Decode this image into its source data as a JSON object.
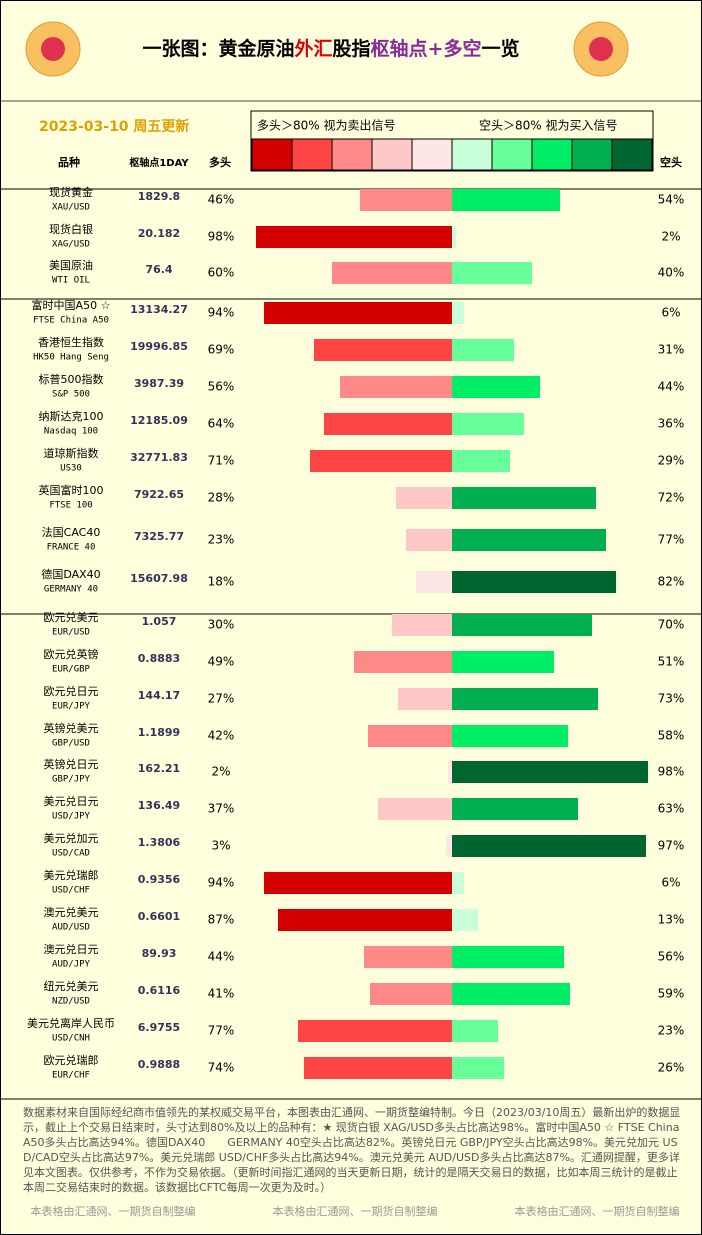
{
  "header": {
    "title": [
      {
        "text": "一张图：黄金原油",
        "color": "#000000"
      },
      {
        "text": "外汇",
        "color": "#e00000"
      },
      {
        "text": "股指",
        "color": "#000000"
      },
      {
        "text": "枢轴点+多空",
        "color": "#8a2a9a"
      },
      {
        "text": "一览",
        "color": "#000000"
      }
    ],
    "date": "2023-03-10 周五更新"
  },
  "legend": {
    "long_note": "多头＞80% 视为卖出信号",
    "short_note": "空头＞80% 视为买入信号",
    "colors": [
      "#d40000",
      "#ff4444",
      "#ff8888",
      "#ffc8c8",
      "#ffe6e6",
      "#c8ffd8",
      "#66ff99",
      "#00ee66",
      "#00b050",
      "#006630"
    ]
  },
  "columns": {
    "name": "品种",
    "pivot": "枢轴点1DAY",
    "long": "多头",
    "short": "空头"
  },
  "table": {
    "groups": [
      [
        {
          "name": "现货黄金",
          "code": "XAU/USD",
          "pivot": 1829.8,
          "long": 46,
          "long_label": "46%",
          "short": 54,
          "short_label": "54%"
        },
        {
          "name": "现货白银",
          "code": "XAG/USD",
          "pivot": 20.182,
          "long": 98,
          "long_label": "98%",
          "short": 2,
          "short_label": "2%"
        },
        {
          "name": "美国原油",
          "code": "WTI OIL",
          "pivot": 76.4,
          "long": 60,
          "long_label": "60%",
          "short": 40,
          "short_label": "40%"
        }
      ],
      [
        {
          "name": "富时中国A50 ☆",
          "code": "FTSE China A50",
          "pivot": 13134.27,
          "long": 94,
          "long_label": "94%",
          "short": 6,
          "short_label": "6%"
        },
        {
          "name": "香港恒生指数",
          "code": "HK50 Hang Seng",
          "pivot": 19996.85,
          "long": 69,
          "long_label": "69%",
          "short": 31,
          "short_label": "31%"
        },
        {
          "name": "标普500指数",
          "code": "S&P 500",
          "pivot": 3987.39,
          "long": 56,
          "long_label": "56%",
          "short": 44,
          "short_label": "44%"
        },
        {
          "name": "纳斯达克100",
          "code": "Nasdaq 100",
          "pivot": 12185.09,
          "long": 64,
          "long_label": "64%",
          "short": 36,
          "short_label": "36%"
        },
        {
          "name": "道琼斯指数",
          "code": "US30",
          "pivot": 32771.83,
          "long": 71,
          "long_label": "71%",
          "short": 29,
          "short_label": "29%"
        },
        {
          "name": "英国富时100",
          "code": "FTSE 100",
          "pivot": 7922.65,
          "long": 28,
          "long_label": "28%",
          "short": 72,
          "short_label": "72%"
        },
        {
          "name": "法国CAC40",
          "code": "FRANCE 40",
          "pivot": 7325.77,
          "long": 23,
          "long_label": "23%",
          "short": 77,
          "short_label": "77%"
        },
        {
          "name": "德国DAX40",
          "code": "GERMANY 40",
          "pivot": 15607.98,
          "long": 18,
          "long_label": "18%",
          "short": 82,
          "short_label": "82%"
        }
      ],
      [
        {
          "name": "欧元兑美元",
          "code": "EUR/USD",
          "pivot": 1.057,
          "long": 30,
          "long_label": "30%",
          "short": 70,
          "short_label": "70%"
        },
        {
          "name": "欧元兑英镑",
          "code": "EUR/GBP",
          "pivot": 0.8883,
          "long": 49,
          "long_label": "49%",
          "short": 51,
          "short_label": "51%"
        },
        {
          "name": "欧元兑日元",
          "code": "EUR/JPY",
          "pivot": 144.17,
          "long": 27,
          "long_label": "27%",
          "short": 73,
          "short_label": "73%"
        },
        {
          "name": "英镑兑美元",
          "code": "GBP/USD",
          "pivot": 1.1899,
          "long": 42,
          "long_label": "42%",
          "short": 58,
          "short_label": "58%"
        },
        {
          "name": "英镑兑日元",
          "code": "GBP/JPY",
          "pivot": 162.21,
          "long": 2,
          "long_label": "2%",
          "short": 98,
          "short_label": "98%"
        },
        {
          "name": "美元兑日元",
          "code": "USD/JPY",
          "pivot": 136.49,
          "long": 37,
          "long_label": "37%",
          "short": 63,
          "short_label": "63%"
        },
        {
          "name": "美元兑加元",
          "code": "USD/CAD",
          "pivot": 1.3806,
          "long": 3,
          "long_label": "3%",
          "short": 97,
          "short_label": "97%"
        },
        {
          "name": "美元兑瑞郎",
          "code": "USD/CHF",
          "pivot": 0.9356,
          "long": 94,
          "long_label": "94%",
          "short": 6,
          "short_label": "6%"
        },
        {
          "name": "澳元兑美元",
          "code": "AUD/USD",
          "pivot": 0.6601,
          "long": 87,
          "long_label": "87%",
          "short": 13,
          "short_label": "13%"
        },
        {
          "name": "澳元兑日元",
          "code": "AUD/JPY",
          "pivot": 89.93,
          "long": 44,
          "long_label": "44%",
          "short": 56,
          "short_label": "56%"
        },
        {
          "name": "纽元兑美元",
          "code": "NZD/USD",
          "pivot": 0.6116,
          "long": 41,
          "long_label": "41%",
          "short": 59,
          "short_label": "59%"
        },
        {
          "name": "美元兑离岸人民币",
          "code": "USD/CNH",
          "pivot": 6.9755,
          "long": 77,
          "long_label": "77%",
          "short": 23,
          "short_label": "23%"
        },
        {
          "name": "欧元兑瑞郎",
          "code": "EUR/CHF",
          "pivot": 0.9888,
          "long": 74,
          "long_label": "74%",
          "short": 26,
          "short_label": "26%"
        }
      ]
    ]
  },
  "notes": "数据素材来自国际经纪商市值领先的某权威交易平台，本图表由汇通网、一期货整编特制。今日（2023/03/10周五）最新出炉的数据显示，截止上个交易日结束时，头寸达到80%及以上的品种有：★ 现货白银 XAG/USD多头占比高达98%。富时中国A50 ☆ FTSE China A50多头占比高达94%。德国DAX40　　GERMANY 40空头占比高达82%。英镑兑日元 GBP/JPY空头占比高达98%。美元兑加元 USD/CAD空头占比高达97%。美元兑瑞郎 USD/CHF多头占比高达94%。澳元兑美元 AUD/USD多头占比高达87%。汇通网提醒，更多详见本文图表。仅供参考，不作为交易依据。（更新时间指汇通网的当天更新日期，统计的是隔天交易日的数据，比如本周三统计的是截止本周二交易结束时的数据。该数据比CFTC每周一次更为及时。）",
  "footer": [
    "本表格由汇通网、一期货自制整编",
    "本表格由汇通网、一期货自制整编",
    "本表格由汇通网、一期货自制整编"
  ]
}
